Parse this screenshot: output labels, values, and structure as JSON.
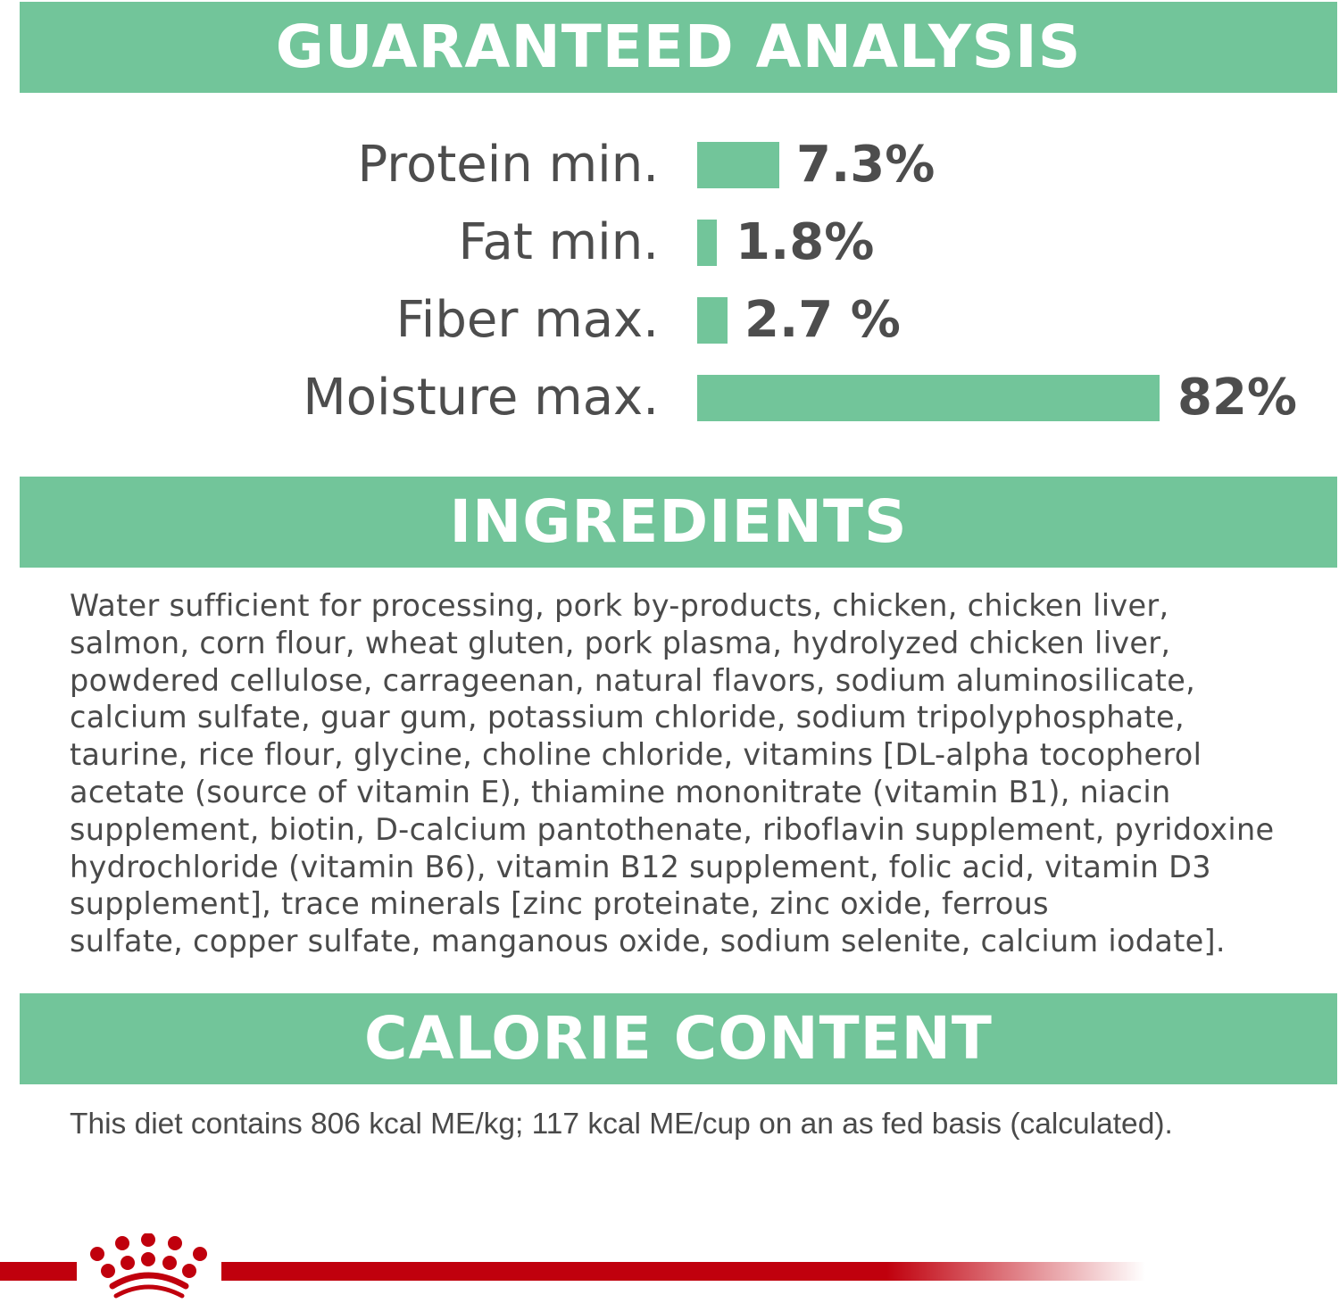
{
  "guaranteed_analysis": {
    "heading": "GUARANTEED ANALYSIS",
    "rows": [
      {
        "label": "Protein min.",
        "value": "7.3%",
        "percent": 7.3
      },
      {
        "label": "Fat min.",
        "value": "1.8%",
        "percent": 1.8
      },
      {
        "label": "Fiber max.",
        "value": "2.7 %",
        "percent": 2.7
      },
      {
        "label": "Moisture max.",
        "value": "82%",
        "percent": 82
      }
    ],
    "bar_color": "#72c59a"
  },
  "ingredients": {
    "heading": "INGREDIENTS",
    "lines": [
      "Water sufficient for processing, pork by-products, chicken, chicken liver,",
      "salmon, corn flour, wheat gluten, pork plasma, hydrolyzed chicken liver,",
      "powdered cellulose, carrageenan, natural flavors, sodium aluminosilicate,",
      "calcium sulfate, guar gum, potassium chloride, sodium tripolyphosphate,",
      "taurine, rice flour, glycine, choline chloride, vitamins [DL-alpha tocopherol",
      "acetate (source of vitamin E), thiamine mononitrate (vitamin B1), niacin",
      "supplement, biotin, D-calcium pantothenate, riboflavin supplement, pyridoxine",
      "hydrochloride (vitamin B6), vitamin B12 supplement, folic acid, vitamin D3",
      "supplement], trace minerals [zinc proteinate, zinc oxide, ferrous",
      "sulfate, copper sulfate, manganous oxide, sodium selenite, calcium iodate]."
    ]
  },
  "calorie_content": {
    "heading": "CALORIE CONTENT",
    "text": "This diet contains 806 kcal ME/kg; 117 kcal ME/cup on an as fed basis (calculated)."
  },
  "brand": {
    "logo": "crown-logo",
    "color": "#c0000d"
  }
}
